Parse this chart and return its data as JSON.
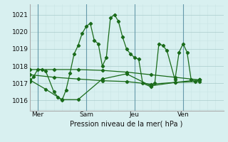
{
  "bg_color": "#d8f0f0",
  "grid_color_major": "#aacccc",
  "grid_color_minor": "#c8e4e4",
  "line_color": "#1a6b1a",
  "marker_color": "#1a6b1a",
  "xlabel_text": "Pression niveau de la mer( hPa )",
  "yticks": [
    1016,
    1017,
    1018,
    1019,
    1020,
    1021
  ],
  "ylim": [
    1015.4,
    1021.6
  ],
  "xtick_labels": [
    "Mer",
    "Sam",
    "Jeu",
    "Ven"
  ],
  "xtick_positions": [
    2,
    14,
    26,
    38
  ],
  "xlim": [
    0,
    48
  ],
  "vlines": [
    2,
    14,
    26,
    38
  ],
  "series1_x": [
    0,
    1,
    2,
    3,
    4,
    6,
    7,
    8,
    9,
    10,
    11,
    12,
    13,
    14,
    15,
    16,
    17,
    18,
    19,
    20,
    21,
    22,
    23,
    24,
    25,
    26,
    27,
    28,
    30,
    31,
    32,
    33,
    34,
    36,
    37,
    38,
    39,
    40,
    41,
    42
  ],
  "series1_y": [
    1017.1,
    1017.4,
    1017.8,
    1017.8,
    1017.7,
    1016.5,
    1016.2,
    1016.0,
    1016.6,
    1017.6,
    1018.7,
    1019.2,
    1019.9,
    1020.3,
    1020.5,
    1019.5,
    1019.3,
    1018.0,
    1018.5,
    1020.8,
    1021.0,
    1020.6,
    1019.7,
    1019.0,
    1018.7,
    1018.5,
    1018.4,
    1017.0,
    1016.8,
    1017.0,
    1019.3,
    1019.2,
    1018.9,
    1017.2,
    1018.8,
    1019.3,
    1018.8,
    1017.2,
    1017.1,
    1017.2
  ],
  "series2_x": [
    0,
    6,
    12,
    18,
    24,
    30,
    36,
    42
  ],
  "series2_y": [
    1017.8,
    1017.8,
    1017.8,
    1017.75,
    1017.65,
    1017.5,
    1017.35,
    1017.2
  ],
  "series3_x": [
    0,
    6,
    12,
    18,
    24,
    30,
    36,
    42
  ],
  "series3_y": [
    1017.5,
    1017.35,
    1017.25,
    1017.15,
    1017.1,
    1016.95,
    1017.05,
    1017.1
  ],
  "series4_x": [
    0,
    4,
    8,
    12,
    18,
    24,
    30,
    36,
    42
  ],
  "series4_y": [
    1017.2,
    1016.65,
    1016.05,
    1016.05,
    1017.25,
    1017.55,
    1016.85,
    1017.05,
    1017.2
  ]
}
